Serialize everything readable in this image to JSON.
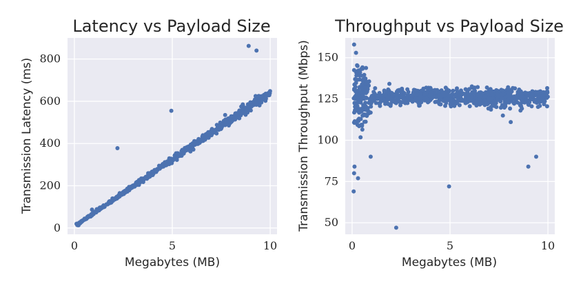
{
  "chart_data": [
    {
      "type": "scatter",
      "title": "Latency vs Payload Size",
      "xlabel": "Megabytes (MB)",
      "ylabel": "Transmission Latency (ms)",
      "xlim": [
        -0.35,
        10.35
      ],
      "ylim": [
        -30,
        900
      ],
      "xticks": [
        0,
        5,
        10
      ],
      "yticks": [
        0,
        200,
        400,
        600,
        800
      ],
      "grid": true,
      "color": "#4c72b0",
      "trend": {
        "description": "dense linear band",
        "x_range": [
          0.1,
          10
        ],
        "approx_slope_ms_per_mb": 63.5,
        "approx_intercept_ms": 7
      },
      "outliers": [
        {
          "x": 2.2,
          "y": 378
        },
        {
          "x": 4.95,
          "y": 555
        },
        {
          "x": 8.9,
          "y": 862
        },
        {
          "x": 9.3,
          "y": 840
        },
        {
          "x": 7.7,
          "y": 535
        },
        {
          "x": 8.6,
          "y": 585
        },
        {
          "x": 0.9,
          "y": 87
        },
        {
          "x": 4.85,
          "y": 330
        }
      ]
    },
    {
      "type": "scatter",
      "title": "Throughput vs Payload Size",
      "xlabel": "Megabytes (MB)",
      "ylabel": "Transmission Throughput (Mbps)",
      "xlim": [
        -0.35,
        10.35
      ],
      "ylim": [
        43,
        162
      ],
      "xticks": [
        0,
        5,
        10
      ],
      "yticks": [
        50,
        75,
        100,
        125,
        150
      ],
      "grid": true,
      "color": "#4c72b0",
      "trend": {
        "description": "wide scatter below 1 MB converging to ~126 Mbps band",
        "center_mbps": 126
      },
      "outliers": [
        {
          "x": 0.1,
          "y": 158
        },
        {
          "x": 0.2,
          "y": 153
        },
        {
          "x": 0.08,
          "y": 69
        },
        {
          "x": 0.1,
          "y": 80
        },
        {
          "x": 0.12,
          "y": 84
        },
        {
          "x": 0.3,
          "y": 77
        },
        {
          "x": 0.95,
          "y": 90
        },
        {
          "x": 2.25,
          "y": 47
        },
        {
          "x": 4.95,
          "y": 72
        },
        {
          "x": 9.0,
          "y": 84
        },
        {
          "x": 9.4,
          "y": 90
        },
        {
          "x": 7.7,
          "y": 115
        },
        {
          "x": 8.1,
          "y": 111
        },
        {
          "x": 8.6,
          "y": 118
        }
      ]
    }
  ]
}
